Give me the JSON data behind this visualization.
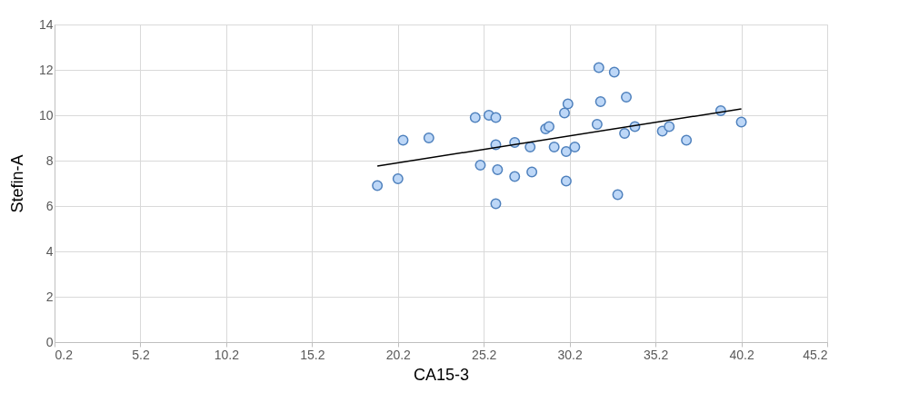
{
  "chart_data": {
    "type": "scatter",
    "xlabel": "CA15-3",
    "ylabel": "Stefin-A",
    "xlim": [
      0.2,
      45.2
    ],
    "xticks": [
      0.2,
      5.2,
      10.2,
      15.2,
      20.2,
      25.2,
      30.2,
      35.2,
      40.2,
      45.2
    ],
    "ylim": [
      0,
      14
    ],
    "yticks": [
      0,
      2,
      4,
      6,
      8,
      10,
      12,
      14
    ],
    "grid": true,
    "series": [
      {
        "marker": "circle",
        "color": "#bdd7f7",
        "x": [
          19.0,
          20.2,
          20.5,
          22.0,
          24.7,
          25.5,
          25.9,
          25.9,
          25.0,
          26.0,
          25.9,
          27.0,
          27.0,
          28.0,
          27.9,
          28.8,
          29.0,
          29.3,
          29.9,
          30.1,
          30.0,
          30.5,
          30.0,
          31.8,
          32.0,
          33.5,
          32.8,
          31.9,
          33.4,
          34.0,
          35.6,
          36.0,
          37.0,
          39.0,
          40.2,
          33.0
        ],
        "values": [
          6.9,
          7.2,
          8.9,
          9.0,
          9.9,
          10.0,
          9.9,
          8.7,
          7.8,
          7.6,
          6.1,
          8.8,
          7.3,
          7.5,
          8.6,
          9.4,
          9.5,
          8.6,
          10.1,
          10.5,
          8.4,
          8.6,
          7.1,
          9.6,
          10.6,
          10.8,
          11.9,
          12.1,
          9.2,
          9.5,
          9.3,
          9.5,
          8.9,
          10.2,
          9.7,
          6.5
        ]
      },
      {
        "type": "line",
        "marker": "none",
        "color": "#000000",
        "x": [
          19.0,
          40.2
        ],
        "values": [
          7.76,
          10.28
        ]
      }
    ]
  }
}
